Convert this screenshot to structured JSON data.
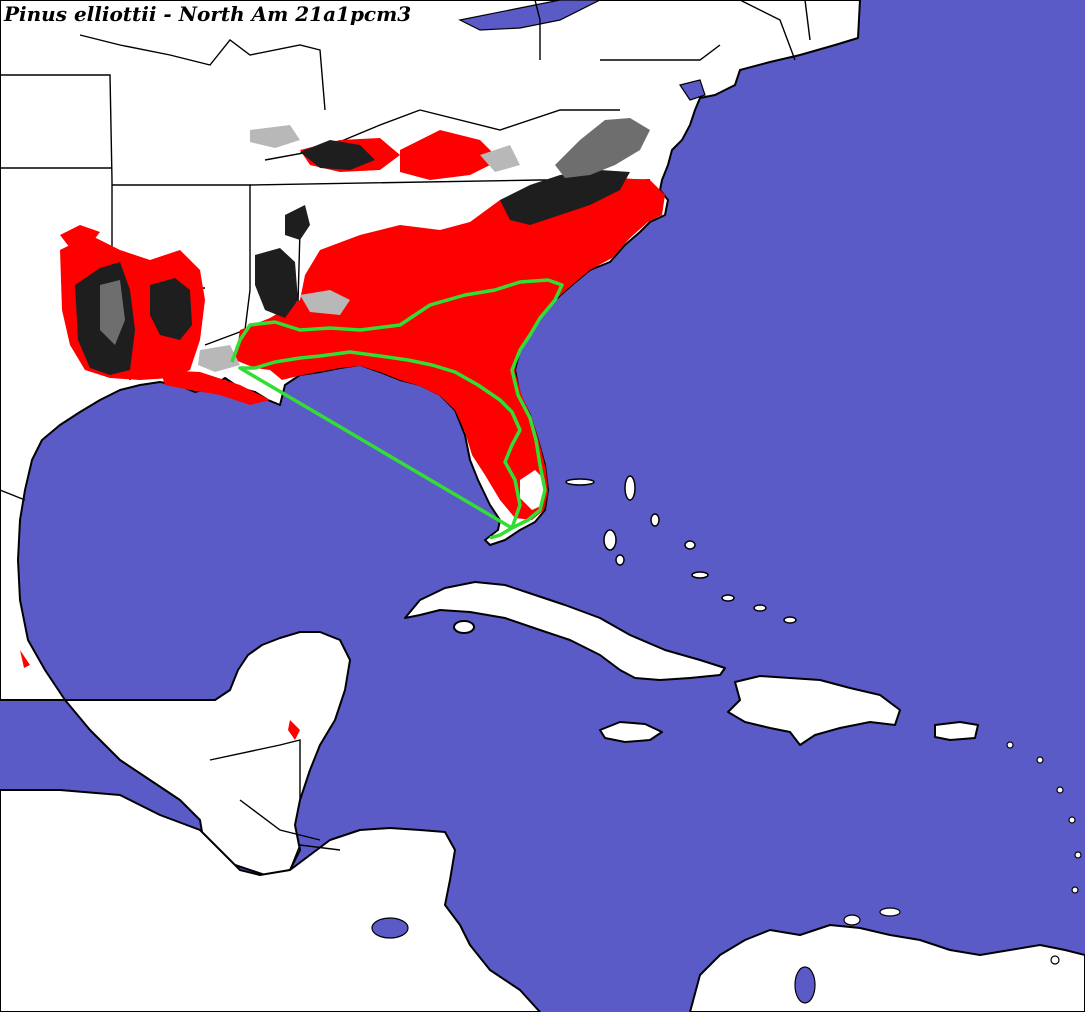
{
  "title": "Pinus elliottii - North Am 21a1pcm3",
  "colors": {
    "ocean": "#5b5bc8",
    "land": "#ffffff",
    "suitable_red": "#ff0000",
    "dark_suitability": "#1e1e1e",
    "mid_suitability": "#6e6e6e",
    "light_suitability": "#b8b8b8",
    "native_range_outline": "#33dd33",
    "borders": "#000000"
  }
}
